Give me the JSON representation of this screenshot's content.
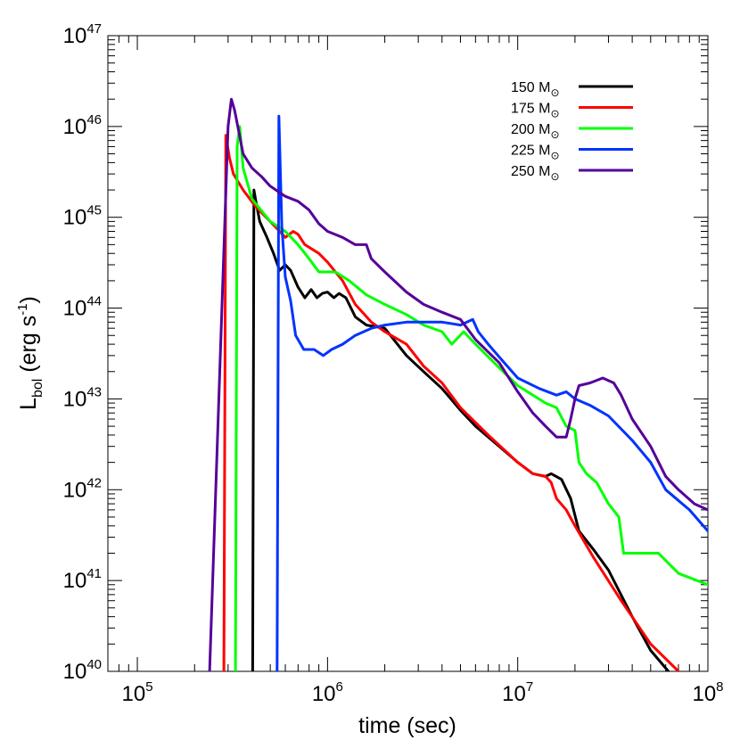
{
  "chart_data": {
    "type": "line",
    "xscale": "log",
    "yscale": "log",
    "xlim": [
      70000,
      100000000
    ],
    "ylim": [
      1e+40,
      1e+47
    ],
    "xlabel": "time (sec)",
    "ylabel": "L",
    "ylabel_sub": "bol",
    "ylabel_units_pre": " (erg s",
    "ylabel_units_sup": "-1",
    "ylabel_units_post": ")",
    "x_ticks": [
      {
        "base": "10",
        "exp": "5",
        "value": 100000
      },
      {
        "base": "10",
        "exp": "6",
        "value": 1000000
      },
      {
        "base": "10",
        "exp": "7",
        "value": 10000000
      },
      {
        "base": "10",
        "exp": "8",
        "value": 100000000
      }
    ],
    "y_ticks": [
      {
        "base": "10",
        "exp": "40",
        "value": 1e+40
      },
      {
        "base": "10",
        "exp": "41",
        "value": 1e+41
      },
      {
        "base": "10",
        "exp": "42",
        "value": 1e+42
      },
      {
        "base": "10",
        "exp": "43",
        "value": 1e+43
      },
      {
        "base": "10",
        "exp": "44",
        "value": 1e+44
      },
      {
        "base": "10",
        "exp": "45",
        "value": 1e+45
      },
      {
        "base": "10",
        "exp": "46",
        "value": 1e+46
      },
      {
        "base": "10",
        "exp": "47",
        "value": 1e+47
      }
    ],
    "legend_position": "top-right",
    "series": [
      {
        "name": "150 M",
        "name_sub": "⊙",
        "color": "#000000",
        "points": [
          [
            404000,
            1e+40
          ],
          [
            410000,
            2e+45
          ],
          [
            420000,
            1.5e+45
          ],
          [
            440000,
            9e+44
          ],
          [
            480000,
            6e+44
          ],
          [
            520000,
            4e+44
          ],
          [
            560000,
            2.6e+44
          ],
          [
            600000,
            3e+44
          ],
          [
            640000,
            2.6e+44
          ],
          [
            700000,
            1.7e+44
          ],
          [
            760000,
            1.3e+44
          ],
          [
            820000,
            1.6e+44
          ],
          [
            880000,
            1.3e+44
          ],
          [
            940000,
            1.45e+44
          ],
          [
            1000000,
            1.5e+44
          ],
          [
            1080000,
            1.3e+44
          ],
          [
            1150000,
            1.45e+44
          ],
          [
            1250000,
            1.3e+44
          ],
          [
            1400000,
            8e+43
          ],
          [
            1600000,
            6.5e+43
          ],
          [
            2000000,
            6e+43
          ],
          [
            2600000,
            3e+43
          ],
          [
            3200000,
            2e+43
          ],
          [
            4000000,
            1.3e+43
          ],
          [
            5000000,
            7.5e+42
          ],
          [
            6000000,
            5e+42
          ],
          [
            8000000,
            3e+42
          ],
          [
            10000000,
            2e+42
          ],
          [
            12000000,
            1.5e+42
          ],
          [
            14000000,
            1.4e+42
          ],
          [
            15000000,
            1.5e+42
          ],
          [
            17000000,
            1.3e+42
          ],
          [
            19000000,
            8e+41
          ],
          [
            21000000,
            3.5e+41
          ],
          [
            25000000,
            2.2e+41
          ],
          [
            30000000,
            1.3e+41
          ],
          [
            40000000,
            4e+40
          ],
          [
            50000000,
            1.7e+40
          ],
          [
            62000000,
            1e+40
          ]
        ]
      },
      {
        "name": "175 M",
        "name_sub": "⊙",
        "color": "#ff0000",
        "points": [
          [
            285000,
            1e+40
          ],
          [
            292000,
            8e+45
          ],
          [
            305000,
            4.5e+45
          ],
          [
            320000,
            3e+45
          ],
          [
            360000,
            2e+45
          ],
          [
            420000,
            1.3e+45
          ],
          [
            500000,
            9e+44
          ],
          [
            560000,
            7e+44
          ],
          [
            600000,
            6e+44
          ],
          [
            660000,
            7e+44
          ],
          [
            700000,
            6.5e+44
          ],
          [
            760000,
            5e+44
          ],
          [
            900000,
            4e+44
          ],
          [
            1000000,
            3.2e+44
          ],
          [
            1200000,
            2e+44
          ],
          [
            1400000,
            1.1e+44
          ],
          [
            1700000,
            7e+43
          ],
          [
            2000000,
            5.5e+43
          ],
          [
            2600000,
            4e+43
          ],
          [
            3200000,
            2.3e+43
          ],
          [
            4000000,
            1.5e+43
          ],
          [
            5000000,
            8e+42
          ],
          [
            7000000,
            4e+42
          ],
          [
            10000000,
            2e+42
          ],
          [
            12000000,
            1.5e+42
          ],
          [
            14000000,
            1.4e+42
          ],
          [
            15000000,
            1.2e+42
          ],
          [
            16000000,
            8e+41
          ],
          [
            18000000,
            6e+41
          ],
          [
            20000000,
            4e+41
          ],
          [
            25000000,
            1.8e+41
          ],
          [
            35000000,
            6e+40
          ],
          [
            50000000,
            2e+40
          ],
          [
            70000000,
            1e+40
          ]
        ]
      },
      {
        "name": "200 M",
        "name_sub": "⊙",
        "color": "#00ff00",
        "points": [
          [
            328000,
            1e+40
          ],
          [
            335000,
            6e+45
          ],
          [
            345000,
            1e+46
          ],
          [
            360000,
            3.5e+45
          ],
          [
            400000,
            1.6e+45
          ],
          [
            500000,
            9e+44
          ],
          [
            600000,
            7e+44
          ],
          [
            700000,
            5e+44
          ],
          [
            800000,
            3.5e+44
          ],
          [
            900000,
            2.5e+44
          ],
          [
            1100000,
            2.5e+44
          ],
          [
            1300000,
            2e+44
          ],
          [
            1600000,
            1.4e+44
          ],
          [
            2000000,
            1.1e+44
          ],
          [
            2600000,
            8.5e+43
          ],
          [
            3200000,
            6.5e+43
          ],
          [
            4000000,
            5.5e+43
          ],
          [
            4500000,
            4e+43
          ],
          [
            5200000,
            5.5e+43
          ],
          [
            6000000,
            4e+43
          ],
          [
            8000000,
            2.2e+43
          ],
          [
            10000000,
            1.4e+43
          ],
          [
            14000000,
            9e+42
          ],
          [
            16000000,
            8e+42
          ],
          [
            18000000,
            5e+42
          ],
          [
            20000000,
            4.5e+42
          ],
          [
            21000000,
            2e+42
          ],
          [
            23000000,
            1.5e+42
          ],
          [
            26000000,
            1.2e+42
          ],
          [
            30000000,
            7e+41
          ],
          [
            34000000,
            5e+41
          ],
          [
            36000000,
            2e+41
          ],
          [
            40000000,
            2e+41
          ],
          [
            45000000,
            2e+41
          ],
          [
            55000000,
            2e+41
          ],
          [
            70000000,
            1.2e+41
          ],
          [
            100000000,
            9e+40
          ]
        ]
      },
      {
        "name": "225 M",
        "name_sub": "⊙",
        "color": "#0033ff",
        "points": [
          [
            543000,
            1e+40
          ],
          [
            555000,
            1.3e+46
          ],
          [
            575000,
            8e+44
          ],
          [
            600000,
            2.2e+44
          ],
          [
            640000,
            1.2e+44
          ],
          [
            680000,
            5e+43
          ],
          [
            750000,
            3.5e+43
          ],
          [
            850000,
            3.5e+43
          ],
          [
            950000,
            3e+43
          ],
          [
            1050000,
            3.5e+43
          ],
          [
            1200000,
            4e+43
          ],
          [
            1400000,
            5e+43
          ],
          [
            1700000,
            6e+43
          ],
          [
            2000000,
            6.5e+43
          ],
          [
            2600000,
            7e+43
          ],
          [
            3200000,
            7e+43
          ],
          [
            4000000,
            7e+43
          ],
          [
            5000000,
            6.5e+43
          ],
          [
            5800000,
            7.5e+43
          ],
          [
            6200000,
            5.5e+43
          ],
          [
            7000000,
            4e+43
          ],
          [
            8500000,
            2.5e+43
          ],
          [
            10000000,
            1.7e+43
          ],
          [
            13000000,
            1.3e+43
          ],
          [
            16000000,
            1.1e+43
          ],
          [
            18000000,
            1.2e+43
          ],
          [
            20000000,
            1e+43
          ],
          [
            24000000,
            8.5e+42
          ],
          [
            30000000,
            6.5e+42
          ],
          [
            40000000,
            3.5e+42
          ],
          [
            50000000,
            2e+42
          ],
          [
            60000000,
            1e+42
          ],
          [
            80000000,
            6e+41
          ],
          [
            100000000,
            3.5e+41
          ]
        ]
      },
      {
        "name": "250 M",
        "name_sub": "⊙",
        "color": "#550099",
        "points": [
          [
            240000,
            1e+40
          ],
          [
            300000,
            1e+46
          ],
          [
            312000,
            2e+46
          ],
          [
            325000,
            1.5e+46
          ],
          [
            360000,
            5e+45
          ],
          [
            400000,
            3.5e+45
          ],
          [
            450000,
            2.8e+45
          ],
          [
            500000,
            2.2e+45
          ],
          [
            600000,
            1.7e+45
          ],
          [
            700000,
            1.5e+45
          ],
          [
            800000,
            1.2e+45
          ],
          [
            900000,
            8.5e+44
          ],
          [
            1000000,
            7e+44
          ],
          [
            1200000,
            6e+44
          ],
          [
            1400000,
            5e+44
          ],
          [
            1600000,
            5e+44
          ],
          [
            1700000,
            3.5e+44
          ],
          [
            2000000,
            2.5e+44
          ],
          [
            2600000,
            1.5e+44
          ],
          [
            3200000,
            1.1e+44
          ],
          [
            4000000,
            9e+43
          ],
          [
            5000000,
            7.5e+43
          ],
          [
            6000000,
            4.5e+43
          ],
          [
            8000000,
            2.5e+43
          ],
          [
            10000000,
            1.2e+43
          ],
          [
            12000000,
            7e+42
          ],
          [
            14000000,
            5e+42
          ],
          [
            16000000,
            3.8e+42
          ],
          [
            18000000,
            3.8e+42
          ],
          [
            19000000,
            6e+42
          ],
          [
            20000000,
            1e+43
          ],
          [
            21000000,
            1.4e+43
          ],
          [
            24000000,
            1.5e+43
          ],
          [
            28000000,
            1.7e+43
          ],
          [
            32000000,
            1.5e+43
          ],
          [
            35000000,
            1.1e+43
          ],
          [
            40000000,
            6e+42
          ],
          [
            50000000,
            3e+42
          ],
          [
            60000000,
            1.4e+42
          ],
          [
            70000000,
            1e+42
          ],
          [
            85000000,
            7e+41
          ],
          [
            100000000,
            6e+41
          ]
        ]
      }
    ]
  }
}
